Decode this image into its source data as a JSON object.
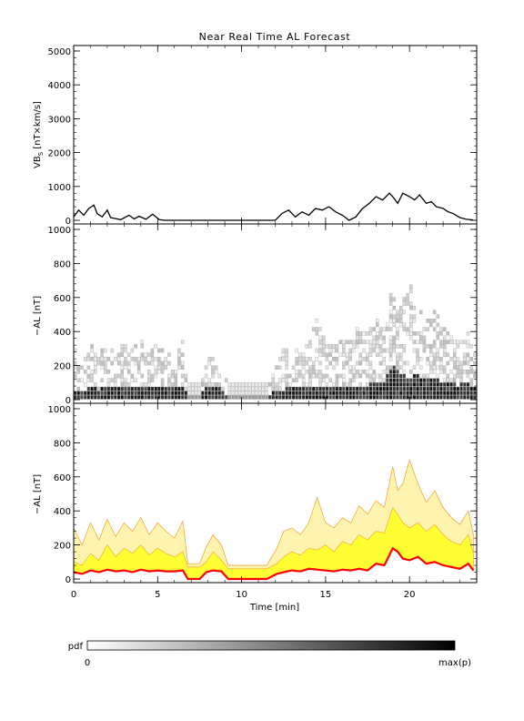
{
  "title": "Near Real Time AL Forecast",
  "colors": {
    "axis": "#000000",
    "vbs_line": "#000000",
    "median_line": "#ff0000",
    "band_light": "#fff3b0",
    "band_mid": "#ffff33",
    "band_edge": "#f0a030",
    "pdf_min": "#ffffff",
    "pdf_max": "#000000"
  },
  "x_axis": {
    "label": "Time [min]",
    "range": [
      0,
      24
    ],
    "ticks": [
      0,
      5,
      10,
      15,
      20
    ],
    "tick_labels": [
      "0",
      "5",
      "10",
      "15",
      "20"
    ]
  },
  "colorbar": {
    "label": "pdf",
    "min_label": "0",
    "max_label": "max(p)"
  },
  "chart_data": [
    {
      "type": "line",
      "panel": "vbs",
      "ylabel_main": "VB",
      "ylabel_sub": "S",
      "ylabel_units": "[nT×km/s]",
      "ylim": [
        0,
        5000
      ],
      "yticks": [
        0,
        1000,
        2000,
        3000,
        4000,
        5000
      ],
      "ytick_labels": [
        "0",
        "1000",
        "2000",
        "3000",
        "4000",
        "5000"
      ],
      "series": [
        {
          "x": [
            0,
            0.3,
            0.6,
            0.9,
            1.2,
            1.4,
            1.7,
            2.0,
            2.2,
            2.5,
            2.8,
            3.3,
            3.6,
            3.9,
            4.3,
            4.7,
            5.1,
            5.4,
            5.8,
            6.2,
            6.8,
            7.5,
            8.0,
            8.5,
            9.0,
            10.0,
            11.0,
            12.0,
            12.4,
            12.8,
            13.2,
            13.6,
            14.0,
            14.4,
            14.8,
            15.2,
            15.6,
            16.0,
            16.4,
            16.8,
            17.2,
            17.6,
            18.0,
            18.4,
            18.8,
            19.0,
            19.3,
            19.6,
            20.0,
            20.3,
            20.6,
            21.0,
            21.3,
            21.6,
            22.0,
            22.3,
            22.6,
            23.0,
            23.4,
            23.8
          ],
          "y": [
            100,
            300,
            150,
            350,
            450,
            200,
            100,
            300,
            80,
            50,
            20,
            150,
            40,
            120,
            30,
            180,
            20,
            0,
            0,
            0,
            0,
            0,
            0,
            0,
            0,
            0,
            0,
            0,
            200,
            300,
            100,
            250,
            150,
            350,
            300,
            400,
            250,
            150,
            0,
            100,
            350,
            500,
            700,
            600,
            800,
            700,
            500,
            800,
            700,
            600,
            750,
            500,
            550,
            400,
            350,
            250,
            200,
            80,
            30,
            10
          ]
        }
      ]
    },
    {
      "type": "heatmap",
      "panel": "pdf",
      "ylabel": "−AL [nT]",
      "ylim": [
        0,
        1000
      ],
      "yticks": [
        0,
        200,
        400,
        600,
        800,
        1000
      ],
      "ytick_labels": [
        "0",
        "200",
        "400",
        "600",
        "800",
        "1000"
      ],
      "x_bin_minutes": 0.2,
      "y_bin_nT": 25,
      "description_of_values": "probability density of -AL per time bin, scaled 0 to max(p)"
    },
    {
      "type": "area",
      "panel": "forecast",
      "ylabel": "−AL [nT]",
      "ylim": [
        0,
        1000
      ],
      "yticks": [
        0,
        200,
        400,
        600,
        800,
        1000
      ],
      "ytick_labels": [
        "0",
        "200",
        "400",
        "600",
        "800",
        "1000"
      ],
      "x": [
        0,
        0.5,
        1.0,
        1.5,
        2.0,
        2.5,
        3.0,
        3.5,
        4.0,
        4.5,
        5.0,
        5.5,
        6.0,
        6.5,
        6.8,
        7.5,
        7.9,
        8.3,
        8.8,
        9.2,
        9.9,
        10.5,
        11.0,
        11.5,
        12.1,
        12.5,
        13.0,
        13.5,
        14.0,
        14.5,
        15.0,
        15.5,
        16.0,
        16.5,
        17.0,
        17.5,
        18.0,
        18.5,
        19.0,
        19.3,
        19.6,
        20.0,
        20.5,
        21.0,
        21.5,
        22.0,
        22.5,
        23.0,
        23.5,
        23.8
      ],
      "median": [
        40,
        30,
        50,
        40,
        55,
        45,
        50,
        40,
        55,
        45,
        50,
        45,
        45,
        50,
        0,
        0,
        40,
        50,
        45,
        0,
        0,
        0,
        0,
        0,
        30,
        40,
        50,
        45,
        60,
        55,
        50,
        45,
        55,
        50,
        60,
        50,
        90,
        80,
        180,
        160,
        120,
        110,
        130,
        90,
        100,
        80,
        70,
        60,
        90,
        50
      ],
      "band_inner": [
        100,
        80,
        150,
        110,
        200,
        130,
        180,
        150,
        200,
        140,
        180,
        150,
        130,
        160,
        70,
        70,
        100,
        160,
        110,
        60,
        60,
        60,
        60,
        60,
        90,
        130,
        160,
        140,
        180,
        170,
        200,
        160,
        220,
        200,
        260,
        230,
        280,
        270,
        420,
        380,
        330,
        300,
        330,
        280,
        320,
        260,
        220,
        200,
        260,
        150
      ],
      "band_outer": [
        300,
        200,
        330,
        230,
        350,
        250,
        330,
        280,
        360,
        260,
        330,
        280,
        240,
        340,
        90,
        90,
        190,
        260,
        200,
        80,
        80,
        80,
        80,
        80,
        180,
        280,
        300,
        260,
        330,
        480,
        330,
        300,
        360,
        330,
        430,
        380,
        460,
        420,
        660,
        520,
        560,
        700,
        560,
        450,
        520,
        420,
        360,
        320,
        400,
        260
      ]
    }
  ]
}
